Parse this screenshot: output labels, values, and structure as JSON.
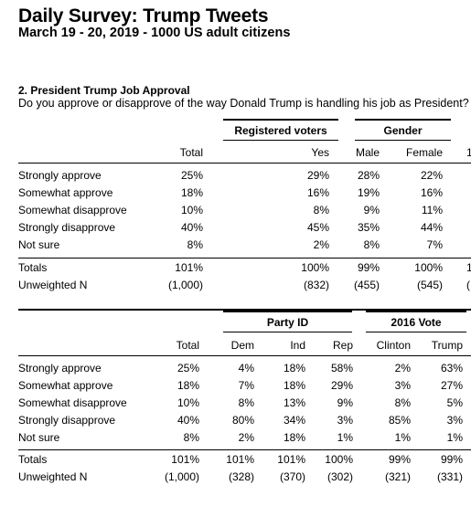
{
  "header": {
    "title": "Daily Survey: Trump Tweets",
    "subtitle": "March 19 - 20, 2019 - 1000 US adult citizens"
  },
  "question": {
    "title": "2. President Trump Job Approval",
    "text": "Do you approve or disapprove of the way Donald Trump is handling his job as President?"
  },
  "table1": {
    "group_headers": [
      "Registered voters",
      "Gender"
    ],
    "columns": [
      "Total",
      "Yes",
      "Male",
      "Female",
      "1"
    ],
    "rows": [
      {
        "label": "Strongly approve",
        "values": [
          "25%",
          "29%",
          "28%",
          "22%",
          ""
        ]
      },
      {
        "label": "Somewhat approve",
        "values": [
          "18%",
          "16%",
          "19%",
          "16%",
          ""
        ]
      },
      {
        "label": "Somewhat disapprove",
        "values": [
          "10%",
          "8%",
          "9%",
          "11%",
          ""
        ]
      },
      {
        "label": "Strongly disapprove",
        "values": [
          "40%",
          "45%",
          "35%",
          "44%",
          ""
        ]
      },
      {
        "label": "Not sure",
        "values": [
          "8%",
          "2%",
          "8%",
          "7%",
          ""
        ]
      }
    ],
    "totals": {
      "label": "Totals",
      "values": [
        "101%",
        "100%",
        "99%",
        "100%",
        "1"
      ]
    },
    "unweighted": {
      "label": "Unweighted N",
      "values": [
        "(1,000)",
        "(832)",
        "(455)",
        "(545)",
        "("
      ]
    }
  },
  "table2": {
    "group_headers": [
      "Party ID",
      "2016 Vote"
    ],
    "columns": [
      "Total",
      "Dem",
      "Ind",
      "Rep",
      "Clinton",
      "Trump"
    ],
    "rows": [
      {
        "label": "Strongly approve",
        "values": [
          "25%",
          "4%",
          "18%",
          "58%",
          "2%",
          "63%"
        ]
      },
      {
        "label": "Somewhat approve",
        "values": [
          "18%",
          "7%",
          "18%",
          "29%",
          "3%",
          "27%"
        ]
      },
      {
        "label": "Somewhat disapprove",
        "values": [
          "10%",
          "8%",
          "13%",
          "9%",
          "8%",
          "5%"
        ]
      },
      {
        "label": "Strongly disapprove",
        "values": [
          "40%",
          "80%",
          "34%",
          "3%",
          "85%",
          "3%"
        ]
      },
      {
        "label": "Not sure",
        "values": [
          "8%",
          "2%",
          "18%",
          "1%",
          "1%",
          "1%"
        ]
      }
    ],
    "totals": {
      "label": "Totals",
      "values": [
        "101%",
        "101%",
        "101%",
        "100%",
        "99%",
        "99%"
      ]
    },
    "unweighted": {
      "label": "Unweighted N",
      "values": [
        "(1,000)",
        "(328)",
        "(370)",
        "(302)",
        "(321)",
        "(331)"
      ]
    }
  }
}
